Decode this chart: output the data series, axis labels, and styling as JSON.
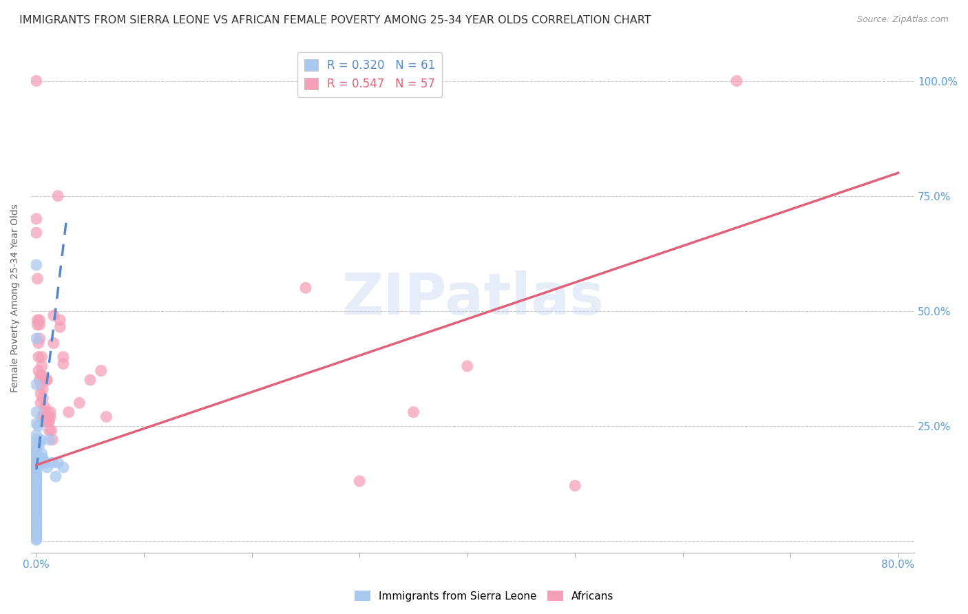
{
  "title": "IMMIGRANTS FROM SIERRA LEONE VS AFRICAN FEMALE POVERTY AMONG 25-34 YEAR OLDS CORRELATION CHART",
  "source": "Source: ZipAtlas.com",
  "tick_color": "#5b9bd5",
  "ylabel": "Female Poverty Among 25-34 Year Olds",
  "watermark": "ZIPatlas",
  "legend_r1": "R = 0.320",
  "legend_n1": "N = 61",
  "legend_r2": "R = 0.547",
  "legend_n2": "N = 57",
  "blue_color": "#a8c8f0",
  "pink_color": "#f5a0b8",
  "blue_line_color": "#5588cc",
  "pink_line_color": "#e0607a",
  "blue_scatter": [
    [
      0.0,
      0.6
    ],
    [
      0.0,
      0.44
    ],
    [
      0.0,
      0.34
    ],
    [
      0.0,
      0.28
    ],
    [
      0.0,
      0.255
    ],
    [
      0.0,
      0.23
    ],
    [
      0.0,
      0.22
    ],
    [
      0.0,
      0.21
    ],
    [
      0.0,
      0.2
    ],
    [
      0.0,
      0.195
    ],
    [
      0.0,
      0.188
    ],
    [
      0.0,
      0.182
    ],
    [
      0.0,
      0.175
    ],
    [
      0.0,
      0.17
    ],
    [
      0.0,
      0.165
    ],
    [
      0.0,
      0.16
    ],
    [
      0.0,
      0.155
    ],
    [
      0.0,
      0.15
    ],
    [
      0.0,
      0.145
    ],
    [
      0.0,
      0.14
    ],
    [
      0.0,
      0.135
    ],
    [
      0.0,
      0.13
    ],
    [
      0.0,
      0.125
    ],
    [
      0.0,
      0.12
    ],
    [
      0.0,
      0.115
    ],
    [
      0.0,
      0.11
    ],
    [
      0.0,
      0.105
    ],
    [
      0.0,
      0.1
    ],
    [
      0.0,
      0.095
    ],
    [
      0.0,
      0.09
    ],
    [
      0.0,
      0.085
    ],
    [
      0.0,
      0.08
    ],
    [
      0.0,
      0.075
    ],
    [
      0.0,
      0.07
    ],
    [
      0.0,
      0.065
    ],
    [
      0.0,
      0.06
    ],
    [
      0.0,
      0.055
    ],
    [
      0.0,
      0.05
    ],
    [
      0.0,
      0.045
    ],
    [
      0.0,
      0.04
    ],
    [
      0.0,
      0.035
    ],
    [
      0.0,
      0.03
    ],
    [
      0.0,
      0.025
    ],
    [
      0.0,
      0.02
    ],
    [
      0.0,
      0.015
    ],
    [
      0.0,
      0.01
    ],
    [
      0.0,
      0.005
    ],
    [
      0.0,
      0.002
    ],
    [
      0.002,
      0.25
    ],
    [
      0.003,
      0.21
    ],
    [
      0.004,
      0.22
    ],
    [
      0.005,
      0.19
    ],
    [
      0.006,
      0.18
    ],
    [
      0.007,
      0.17
    ],
    [
      0.009,
      0.17
    ],
    [
      0.01,
      0.16
    ],
    [
      0.012,
      0.22
    ],
    [
      0.015,
      0.17
    ],
    [
      0.018,
      0.14
    ],
    [
      0.02,
      0.17
    ],
    [
      0.025,
      0.16
    ]
  ],
  "pink_scatter": [
    [
      0.0,
      1.0
    ],
    [
      0.0,
      0.7
    ],
    [
      0.0,
      0.67
    ],
    [
      0.001,
      0.57
    ],
    [
      0.001,
      0.48
    ],
    [
      0.001,
      0.47
    ],
    [
      0.002,
      0.43
    ],
    [
      0.002,
      0.4
    ],
    [
      0.002,
      0.37
    ],
    [
      0.003,
      0.48
    ],
    [
      0.003,
      0.47
    ],
    [
      0.003,
      0.44
    ],
    [
      0.003,
      0.35
    ],
    [
      0.004,
      0.36
    ],
    [
      0.004,
      0.34
    ],
    [
      0.004,
      0.32
    ],
    [
      0.004,
      0.3
    ],
    [
      0.005,
      0.4
    ],
    [
      0.005,
      0.38
    ],
    [
      0.005,
      0.36
    ],
    [
      0.005,
      0.27
    ],
    [
      0.006,
      0.33
    ],
    [
      0.006,
      0.31
    ],
    [
      0.007,
      0.28
    ],
    [
      0.007,
      0.26
    ],
    [
      0.008,
      0.29
    ],
    [
      0.008,
      0.27
    ],
    [
      0.009,
      0.35
    ],
    [
      0.009,
      0.26
    ],
    [
      0.01,
      0.35
    ],
    [
      0.01,
      0.28
    ],
    [
      0.011,
      0.27
    ],
    [
      0.011,
      0.26
    ],
    [
      0.012,
      0.26
    ],
    [
      0.012,
      0.24
    ],
    [
      0.013,
      0.28
    ],
    [
      0.013,
      0.27
    ],
    [
      0.014,
      0.24
    ],
    [
      0.015,
      0.22
    ],
    [
      0.016,
      0.49
    ],
    [
      0.016,
      0.43
    ],
    [
      0.02,
      0.75
    ],
    [
      0.022,
      0.48
    ],
    [
      0.022,
      0.465
    ],
    [
      0.025,
      0.4
    ],
    [
      0.025,
      0.385
    ],
    [
      0.03,
      0.28
    ],
    [
      0.04,
      0.3
    ],
    [
      0.05,
      0.35
    ],
    [
      0.06,
      0.37
    ],
    [
      0.065,
      0.27
    ],
    [
      0.25,
      0.55
    ],
    [
      0.3,
      0.13
    ],
    [
      0.35,
      0.28
    ],
    [
      0.4,
      0.38
    ],
    [
      0.5,
      0.12
    ],
    [
      0.65,
      1.0
    ]
  ],
  "blue_trend_x": [
    0.0,
    0.028
  ],
  "blue_trend_y": [
    0.155,
    0.7
  ],
  "pink_trend_x": [
    0.0,
    0.8
  ],
  "pink_trend_y": [
    0.165,
    0.8
  ],
  "xmin": -0.005,
  "xmax": 0.815,
  "ymin": -0.025,
  "ymax": 1.08,
  "x_ticks": [
    0.0,
    0.1,
    0.2,
    0.3,
    0.4,
    0.5,
    0.6,
    0.7,
    0.8
  ],
  "x_tick_labels_show": {
    "0.0": "0.0%",
    "0.8": "80.0%"
  },
  "y_ticks": [
    0.0,
    0.25,
    0.5,
    0.75,
    1.0
  ],
  "y_tick_labels_right": [
    "",
    "25.0%",
    "50.0%",
    "75.0%",
    "100.0%"
  ],
  "grid_color": "#cccccc",
  "bg_color": "#ffffff",
  "title_fontsize": 11.5,
  "label_fontsize": 10,
  "tick_fontsize": 11
}
